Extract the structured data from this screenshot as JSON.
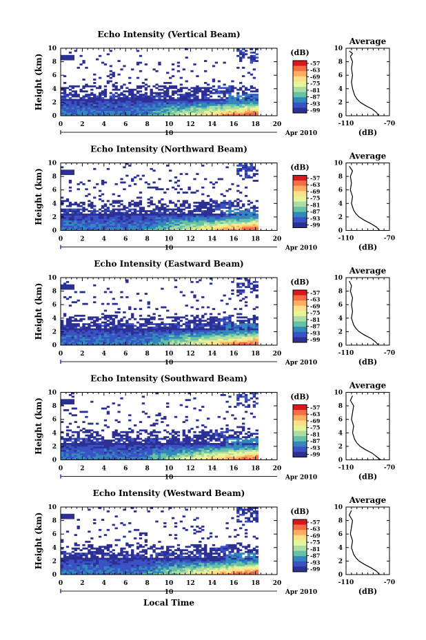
{
  "figure": {
    "xlabel": "Local Time",
    "date_label": "Apr 2010",
    "date_day": "10",
    "colorbar_unit": "(dB)",
    "profile_title": "Average",
    "profile_unit": "(dB)"
  },
  "chart_data": [
    {
      "type": "heatmap",
      "title": "Echo Intensity (Vertical Beam)",
      "ylabel": "Height (km)",
      "xlabel": "",
      "xlim": [
        0,
        20
      ],
      "ylim": [
        0,
        10
      ],
      "xticks": [
        "0",
        "2",
        "4",
        "6",
        "8",
        "10",
        "12",
        "14",
        "16",
        "18",
        "20"
      ],
      "yticks": [
        "0",
        "2",
        "4",
        "6",
        "8",
        "10"
      ],
      "colorbar": {
        "label": "(dB)",
        "ticks": [
          "-57",
          "-63",
          "-69",
          "-75",
          "-81",
          "-87",
          "-93",
          "-99"
        ],
        "colors": [
          "#d7191c",
          "#f46d43",
          "#fdae61",
          "#fee08b",
          "#e6f598",
          "#abdda4",
          "#66c2a5",
          "#3288bd",
          "#3a52c4",
          "#2c2f94"
        ]
      },
      "profile": {
        "title": "Average",
        "xlabel": "(dB)",
        "xticks": [
          "-110",
          "-70"
        ],
        "yticks": [
          "0",
          "2",
          "4",
          "6",
          "8",
          "10"
        ],
        "values": [
          [
            -80,
            0.0
          ],
          [
            -82,
            0.5
          ],
          [
            -86,
            1.0
          ],
          [
            -92,
            1.5
          ],
          [
            -97,
            2.0
          ],
          [
            -100,
            2.5
          ],
          [
            -102,
            3.0
          ],
          [
            -103,
            3.5
          ],
          [
            -104,
            4.0
          ],
          [
            -105,
            5.0
          ],
          [
            -104,
            6.0
          ],
          [
            -105,
            7.0
          ],
          [
            -104,
            8.0
          ],
          [
            -106,
            8.8
          ],
          [
            -104,
            9.2
          ],
          [
            -107,
            9.6
          ]
        ]
      }
    },
    {
      "type": "heatmap",
      "title": "Echo Intensity (Northward Beam)",
      "ylabel": "Height (km)",
      "xlabel": "",
      "xlim": [
        0,
        20
      ],
      "ylim": [
        0,
        10
      ],
      "xticks": [
        "0",
        "2",
        "4",
        "6",
        "8",
        "10",
        "12",
        "14",
        "16",
        "18",
        "20"
      ],
      "yticks": [
        "0",
        "2",
        "4",
        "6",
        "8",
        "10"
      ],
      "colorbar": {
        "label": "(dB)",
        "ticks": [
          "-57",
          "-63",
          "-69",
          "-75",
          "-81",
          "-87",
          "-93",
          "-99"
        ],
        "colors": [
          "#d7191c",
          "#f46d43",
          "#fdae61",
          "#fee08b",
          "#e6f598",
          "#abdda4",
          "#66c2a5",
          "#3288bd",
          "#3a52c4",
          "#2c2f94"
        ]
      },
      "profile": {
        "title": "Average",
        "xlabel": "(dB)",
        "xticks": [
          "-110",
          "-70"
        ],
        "yticks": [
          "0",
          "2",
          "4",
          "6",
          "8",
          "10"
        ],
        "values": [
          [
            -79,
            0.0
          ],
          [
            -82,
            0.5
          ],
          [
            -87,
            1.0
          ],
          [
            -93,
            1.5
          ],
          [
            -98,
            2.0
          ],
          [
            -101,
            2.5
          ],
          [
            -103,
            3.0
          ],
          [
            -104,
            3.5
          ],
          [
            -105,
            4.0
          ],
          [
            -104,
            5.0
          ],
          [
            -106,
            6.0
          ],
          [
            -105,
            7.0
          ],
          [
            -106,
            8.0
          ],
          [
            -104,
            8.8
          ],
          [
            -107,
            9.5
          ]
        ]
      }
    },
    {
      "type": "heatmap",
      "title": "Echo Intensity (Eastward Beam)",
      "ylabel": "Height (km)",
      "xlabel": "",
      "xlim": [
        0,
        20
      ],
      "ylim": [
        0,
        10
      ],
      "xticks": [
        "0",
        "2",
        "4",
        "6",
        "8",
        "10",
        "12",
        "14",
        "16",
        "18",
        "20"
      ],
      "yticks": [
        "0",
        "2",
        "4",
        "6",
        "8",
        "10"
      ],
      "colorbar": {
        "label": "(dB)",
        "ticks": [
          "-57",
          "-63",
          "-69",
          "-75",
          "-81",
          "-87",
          "-93",
          "-99"
        ],
        "colors": [
          "#d7191c",
          "#f46d43",
          "#fdae61",
          "#fee08b",
          "#e6f598",
          "#abdda4",
          "#66c2a5",
          "#3288bd",
          "#3a52c4",
          "#2c2f94"
        ]
      },
      "profile": {
        "title": "Average",
        "xlabel": "(dB)",
        "xticks": [
          "-110",
          "-70"
        ],
        "yticks": [
          "0",
          "2",
          "4",
          "6",
          "8",
          "10"
        ],
        "values": [
          [
            -80,
            0.0
          ],
          [
            -83,
            0.5
          ],
          [
            -87,
            1.0
          ],
          [
            -93,
            1.5
          ],
          [
            -98,
            2.0
          ],
          [
            -101,
            2.5
          ],
          [
            -103,
            3.0
          ],
          [
            -104,
            3.5
          ],
          [
            -105,
            4.0
          ],
          [
            -104,
            5.0
          ],
          [
            -105,
            6.0
          ],
          [
            -104,
            7.0
          ],
          [
            -106,
            8.0
          ],
          [
            -105,
            8.8
          ],
          [
            -107,
            9.5
          ]
        ]
      }
    },
    {
      "type": "heatmap",
      "title": "Echo Intensity (Southward Beam)",
      "ylabel": "Height (km)",
      "xlabel": "",
      "xlim": [
        0,
        20
      ],
      "ylim": [
        0,
        10
      ],
      "xticks": [
        "0",
        "2",
        "4",
        "6",
        "8",
        "10",
        "12",
        "14",
        "16",
        "18",
        "20"
      ],
      "yticks": [
        "0",
        "2",
        "4",
        "6",
        "8",
        "10"
      ],
      "colorbar": {
        "label": "(dB)",
        "ticks": [
          "-57",
          "-63",
          "-69",
          "-75",
          "-81",
          "-87",
          "-93",
          "-99"
        ],
        "colors": [
          "#d7191c",
          "#f46d43",
          "#fdae61",
          "#fee08b",
          "#e6f598",
          "#abdda4",
          "#66c2a5",
          "#3288bd",
          "#3a52c4",
          "#2c2f94"
        ]
      },
      "profile": {
        "title": "Average",
        "xlabel": "(dB)",
        "xticks": [
          "-110",
          "-70"
        ],
        "yticks": [
          "0",
          "2",
          "4",
          "6",
          "8",
          "10"
        ],
        "values": [
          [
            -78,
            0.0
          ],
          [
            -82,
            0.5
          ],
          [
            -86,
            1.0
          ],
          [
            -92,
            1.5
          ],
          [
            -97,
            2.0
          ],
          [
            -100,
            2.5
          ],
          [
            -102,
            3.0
          ],
          [
            -103,
            3.5
          ],
          [
            -104,
            4.0
          ],
          [
            -103,
            5.0
          ],
          [
            -105,
            6.0
          ],
          [
            -104,
            7.0
          ],
          [
            -103,
            8.0
          ],
          [
            -106,
            8.8
          ],
          [
            -104,
            9.5
          ]
        ]
      }
    },
    {
      "type": "heatmap",
      "title": "Echo Intensity (Westward Beam)",
      "ylabel": "Height (km)",
      "xlabel": "Local Time",
      "xlim": [
        0,
        20
      ],
      "ylim": [
        0,
        10
      ],
      "xticks": [
        "0",
        "2",
        "4",
        "6",
        "8",
        "10",
        "12",
        "14",
        "16",
        "18",
        "20"
      ],
      "yticks": [
        "0",
        "2",
        "4",
        "6",
        "8",
        "10"
      ],
      "colorbar": {
        "label": "(dB)",
        "ticks": [
          "-57",
          "-63",
          "-69",
          "-75",
          "-81",
          "-87",
          "-93",
          "-99"
        ],
        "colors": [
          "#d7191c",
          "#f46d43",
          "#fdae61",
          "#fee08b",
          "#e6f598",
          "#abdda4",
          "#66c2a5",
          "#3288bd",
          "#3a52c4",
          "#2c2f94"
        ]
      },
      "profile": {
        "title": "Average",
        "xlabel": "(dB)",
        "xticks": [
          "-110",
          "-70"
        ],
        "yticks": [
          "0",
          "2",
          "4",
          "6",
          "8",
          "10"
        ],
        "values": [
          [
            -79,
            0.0
          ],
          [
            -82,
            0.5
          ],
          [
            -87,
            1.0
          ],
          [
            -93,
            1.5
          ],
          [
            -98,
            2.0
          ],
          [
            -101,
            2.5
          ],
          [
            -103,
            3.0
          ],
          [
            -104,
            3.5
          ],
          [
            -105,
            4.0
          ],
          [
            -104,
            5.0
          ],
          [
            -106,
            6.0
          ],
          [
            -105,
            7.0
          ],
          [
            -104,
            8.0
          ],
          [
            -107,
            8.8
          ],
          [
            -105,
            9.5
          ]
        ]
      }
    }
  ]
}
